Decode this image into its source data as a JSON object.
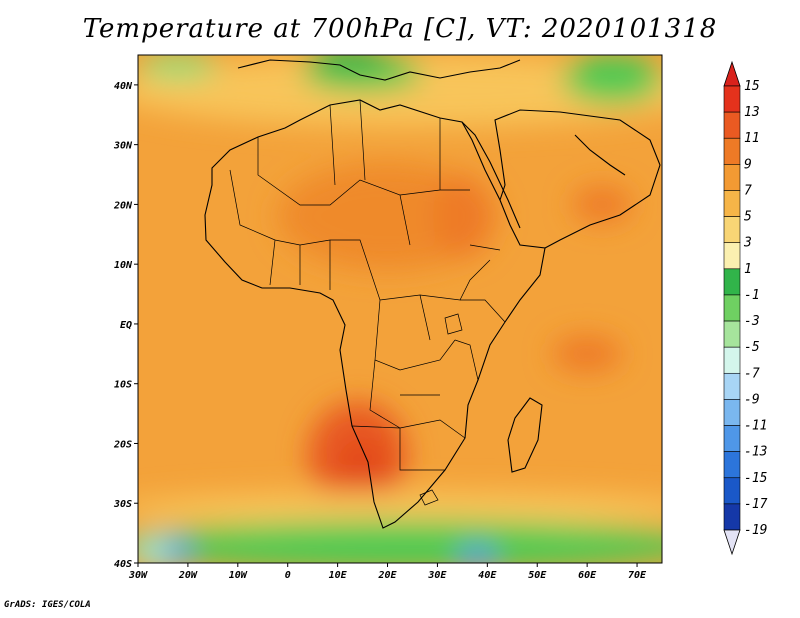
{
  "title": "Temperature at 700hPa [C], VT: 2020101318",
  "credit": "GrADS: IGES/COLA",
  "map": {
    "lon_range": [
      -30,
      75
    ],
    "lat_range": [
      -40,
      45
    ],
    "lon_ticks": [
      {
        "value": -30,
        "label": "30W"
      },
      {
        "value": -20,
        "label": "20W"
      },
      {
        "value": -10,
        "label": "10W"
      },
      {
        "value": 0,
        "label": "0"
      },
      {
        "value": 10,
        "label": "10E"
      },
      {
        "value": 20,
        "label": "20E"
      },
      {
        "value": 30,
        "label": "30E"
      },
      {
        "value": 40,
        "label": "40E"
      },
      {
        "value": 50,
        "label": "50E"
      },
      {
        "value": 60,
        "label": "60E"
      },
      {
        "value": 70,
        "label": "70E"
      }
    ],
    "lat_ticks": [
      {
        "value": 40,
        "label": "40N"
      },
      {
        "value": 30,
        "label": "30N"
      },
      {
        "value": 20,
        "label": "20N"
      },
      {
        "value": 10,
        "label": "10N"
      },
      {
        "value": 0,
        "label": "EQ"
      },
      {
        "value": -10,
        "label": "10S"
      },
      {
        "value": -20,
        "label": "20S"
      },
      {
        "value": -30,
        "label": "30S"
      },
      {
        "value": -40,
        "label": "40S"
      }
    ],
    "background_color": "#f3a23a",
    "features": [
      {
        "name": "saharan-warm-zone",
        "color": "#ef8a2c",
        "lon": 20,
        "lat": 18,
        "rx_deg": 22,
        "ry_deg": 9
      },
      {
        "name": "east-africa-warm-zone",
        "color": "#ee7a26",
        "lon": 35,
        "lat": 18,
        "rx_deg": 6,
        "ry_deg": 7
      },
      {
        "name": "arabia-warm-zone",
        "color": "#ee7a26",
        "lon": 63,
        "lat": 20,
        "rx_deg": 6,
        "ry_deg": 3
      },
      {
        "name": "southwest-africa-hot-zone",
        "color": "#e85a22",
        "lon": 14,
        "lat": -22,
        "rx_deg": 10,
        "ry_deg": 9
      },
      {
        "name": "southwest-africa-core",
        "color": "#e34a1e",
        "lon": 15,
        "lat": -24,
        "rx_deg": 5,
        "ry_deg": 5
      },
      {
        "name": "indian-ocean-warm-patch",
        "color": "#ee7a26",
        "lon": 60,
        "lat": -5,
        "rx_deg": 7,
        "ry_deg": 3
      },
      {
        "name": "north-cool-band",
        "color": "#f8c55a",
        "lon": 25,
        "lat": 39,
        "rx_deg": 60,
        "ry_deg": 6
      },
      {
        "name": "mediterranean-cold-zone",
        "color": "#4ccb52",
        "lon": 15,
        "lat": 42,
        "rx_deg": 12,
        "ry_deg": 3
      },
      {
        "name": "europe-cold-zone",
        "color": "#2fb548",
        "lon": 12,
        "lat": 44,
        "rx_deg": 8,
        "ry_deg": 2
      },
      {
        "name": "iberia-cold-zone",
        "color": "#8be07a",
        "lon": -22,
        "lat": 43,
        "rx_deg": 8,
        "ry_deg": 2
      },
      {
        "name": "middle-east-cold-zone",
        "color": "#4ccb52",
        "lon": 65,
        "lat": 41,
        "rx_deg": 10,
        "ry_deg": 4
      },
      {
        "name": "south-cool-band",
        "color": "#f8c55a",
        "lon": 25,
        "lat": -31,
        "rx_deg": 60,
        "ry_deg": 3
      },
      {
        "name": "southern-ocean-cold-zone",
        "color": "#4ccb52",
        "lon": 25,
        "lat": -37,
        "rx_deg": 60,
        "ry_deg": 4
      },
      {
        "name": "south-atlantic-cold-patch",
        "color": "#9ee8d0",
        "lon": -25,
        "lat": -38,
        "rx_deg": 6,
        "ry_deg": 3
      },
      {
        "name": "south-atlantic-cold-core",
        "color": "#4f9bea",
        "lon": -22,
        "lat": -38,
        "rx_deg": 3,
        "ry_deg": 2
      },
      {
        "name": "south-indian-cold-patch",
        "color": "#4f9bea",
        "lon": 38,
        "lat": -39,
        "rx_deg": 4,
        "ry_deg": 2
      }
    ]
  },
  "legend": {
    "items": [
      {
        "label": "15",
        "color": "#e4321c"
      },
      {
        "label": "13",
        "color": "#ea5a22"
      },
      {
        "label": "11",
        "color": "#ee7a26"
      },
      {
        "label": "9",
        "color": "#f39a33"
      },
      {
        "label": "7",
        "color": "#f6b548"
      },
      {
        "label": "5",
        "color": "#f8d575"
      },
      {
        "label": "3",
        "color": "#fbf0b0"
      },
      {
        "label": "1",
        "color": "#31b44a"
      },
      {
        "label": "-1",
        "color": "#6fd062"
      },
      {
        "label": "-3",
        "color": "#a6e49c"
      },
      {
        "label": "-5",
        "color": "#d4f6ec"
      },
      {
        "label": "-7",
        "color": "#a8d5f5"
      },
      {
        "label": "-9",
        "color": "#7ab7ef"
      },
      {
        "label": "-11",
        "color": "#4f97e8"
      },
      {
        "label": "-13",
        "color": "#2c75db"
      },
      {
        "label": "-15",
        "color": "#1a58c8"
      },
      {
        "label": "-17",
        "color": "#1538a8"
      },
      {
        "label": "-19",
        "color": "#0f1e78"
      }
    ],
    "top_arrow_color": "#d9221c",
    "bottom_arrow_color": "#e3e3f5"
  }
}
